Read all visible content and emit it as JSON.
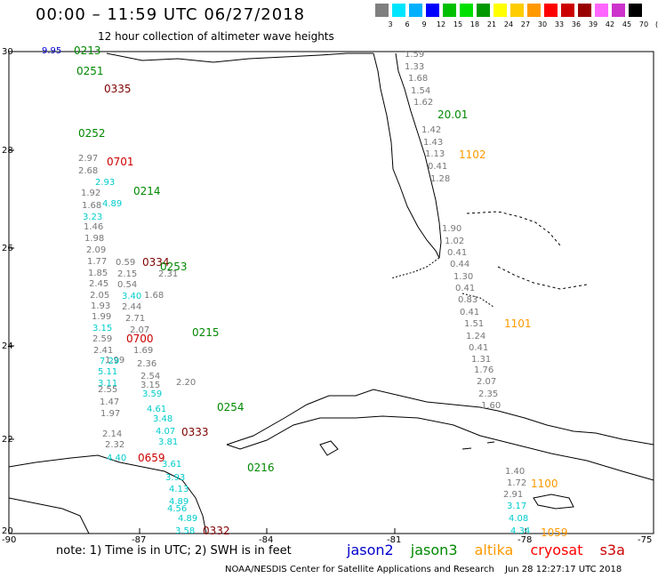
{
  "title": "00:00 – 11:59 UTC 06/27/2018",
  "subtitle": "12 hour collection of altimeter wave heights",
  "colorbar": {
    "ticks": [
      "3",
      "6",
      "9",
      "12",
      "15",
      "18",
      "21",
      "24",
      "27",
      "30",
      "33",
      "36",
      "39",
      "42",
      "45",
      "70",
      "(ft)"
    ],
    "colors": [
      "#7f7f7f",
      "#00e5ff",
      "#00b0ff",
      "#0000ff",
      "#00c000",
      "#00e000",
      "#009900",
      "#ffff00",
      "#ffcc00",
      "#ff9900",
      "#ff0000",
      "#cc0000",
      "#990000",
      "#ff66ff",
      "#cc33cc",
      "#000000"
    ]
  },
  "axes": {
    "lat_labels": [
      "30",
      "28",
      "26",
      "24",
      "22",
      "20"
    ],
    "lon_labels": [
      "-90",
      "-87",
      "-84",
      "-81",
      "-78",
      "-75"
    ]
  },
  "colors": {
    "jason2": "#0000cc",
    "jason3": "#008800",
    "altika": "#ff9900",
    "cryosat": "#cc0000",
    "s3a": "#800000",
    "gray": "#777777",
    "cyan": "#00cccc"
  },
  "pass_labels": [
    {
      "text": "0213",
      "color": "jason3"
    },
    {
      "text": "0251",
      "color": "jason3"
    },
    {
      "text": "0335",
      "color": "s3a"
    },
    {
      "text": "0252",
      "color": "jason3"
    },
    {
      "text": "0701",
      "color": "cryosat"
    },
    {
      "text": "0214",
      "color": "jason3"
    },
    {
      "text": "0334",
      "color": "s3a"
    },
    {
      "text": "0253",
      "color": "jason3"
    },
    {
      "text": "0215",
      "color": "jason3"
    },
    {
      "text": "0700",
      "color": "cryosat"
    },
    {
      "text": "0254",
      "color": "jason3"
    },
    {
      "text": "0333",
      "color": "s3a"
    },
    {
      "text": "0216",
      "color": "jason3"
    },
    {
      "text": "0659",
      "color": "cryosat"
    },
    {
      "text": "0332",
      "color": "s3a"
    },
    {
      "text": "1102",
      "color": "altika"
    },
    {
      "text": "1101",
      "color": "altika"
    },
    {
      "text": "1100",
      "color": "altika"
    },
    {
      "text": "1059",
      "color": "altika"
    },
    {
      "text": "20.01",
      "color": "jason3"
    }
  ],
  "values_left_gray": [
    "2.97",
    "2.68",
    "1.92",
    "1.68",
    "1.46",
    "1.98",
    "2.09",
    "1.77",
    "1.85",
    "2.45",
    "2.05",
    "1.93",
    "1.99",
    "2.59",
    "2.41",
    "1.99",
    "2.55",
    "1.47",
    "1.97",
    "2.14",
    "2.32"
  ],
  "values_left_cyan": [
    "3.23",
    "3.15",
    "7.29",
    "5.11",
    "3.11",
    "4.40"
  ],
  "values_mid_cyan": [
    "2.93",
    "4.89",
    "3.40",
    "3.59",
    "4.61",
    "3.48",
    "4.07",
    "3.81",
    "3.61",
    "3.93",
    "4.13",
    "4.89",
    "4.56",
    "4.89",
    "3.58"
  ],
  "values_mid_gray": [
    "0.59",
    "2.15",
    "0.54",
    "2.44",
    "2.71",
    "2.07",
    "1.69",
    "2.36",
    "2.54",
    "3.15",
    "1.68",
    "2.31",
    "2.20"
  ],
  "values_east_gray": [
    "1.59",
    "1.33",
    "1.68",
    "1.54",
    "1.62",
    "1.42",
    "1.43",
    "1.13",
    "0.41",
    "1.28",
    "1.90",
    "1.02",
    "0.41",
    "0.44",
    "1.30",
    "0.41",
    "0.83",
    "0.41",
    "1.51",
    "1.24",
    "0.41",
    "1.31",
    "1.76",
    "2.07",
    "2.35",
    "1.60",
    "1.40",
    "1.72",
    "2.91"
  ],
  "values_east_cyan": [
    "3.17",
    "4.08",
    "4.34"
  ],
  "values_top_left": [
    "9.95"
  ],
  "note": "note: 1) Time is in UTC; 2) SWH is in feet",
  "legend": [
    "jason2",
    "jason3",
    "altika",
    "cryosat",
    "s3a"
  ],
  "footer": "NOAA/NESDIS Center for Satellite Applications and Research",
  "footer_time": "Jun 28 12:27:17 UTC 2018"
}
